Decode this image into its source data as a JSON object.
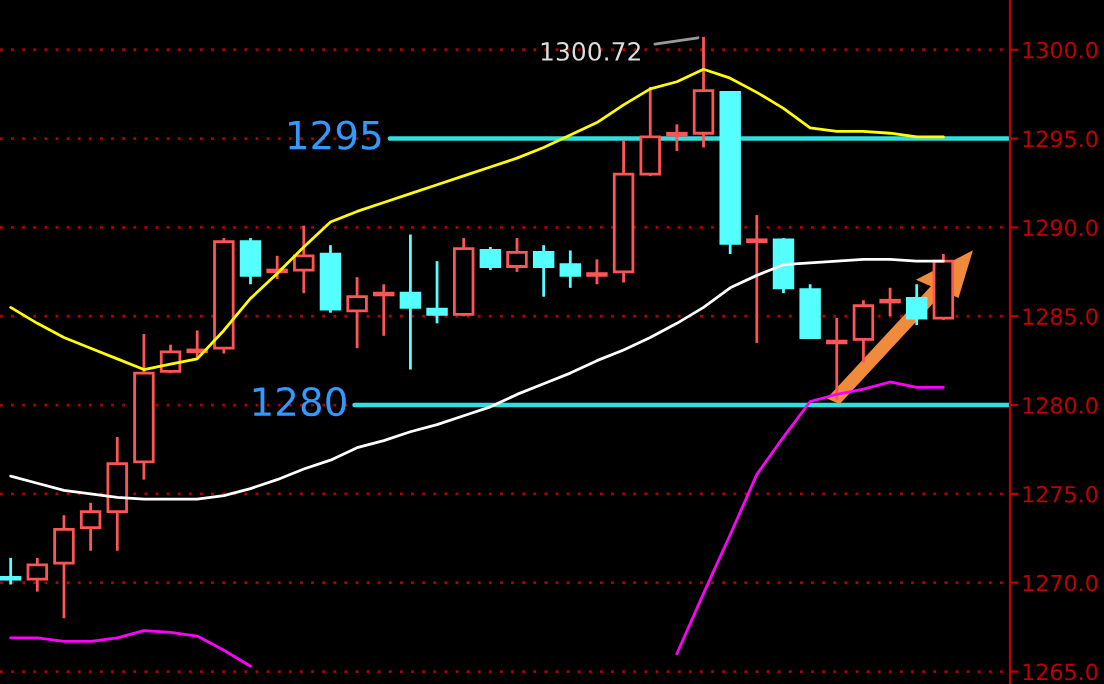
{
  "chart_data": {
    "type": "candlestick",
    "categories": [
      null,
      null,
      null,
      null,
      null,
      null,
      null,
      null,
      null,
      null,
      null,
      null,
      null,
      null,
      null,
      null,
      null,
      null,
      null,
      null,
      null,
      null,
      null,
      null,
      null,
      null,
      null,
      null,
      null,
      null,
      null,
      null,
      null,
      null,
      null,
      null
    ],
    "ohlc": [
      [
        1270.3,
        1271.4,
        1269.9,
        1270.2
      ],
      [
        1270.2,
        1271.4,
        1269.5,
        1271.0
      ],
      [
        1271.1,
        1273.8,
        1268.0,
        1273.0
      ],
      [
        1273.1,
        1274.5,
        1271.8,
        1274.0
      ],
      [
        1274.0,
        1278.2,
        1271.8,
        1276.7
      ],
      [
        1276.8,
        1284.0,
        1275.8,
        1281.8
      ],
      [
        1281.9,
        1283.4,
        1281.8,
        1283.0
      ],
      [
        1283.0,
        1284.2,
        1282.6,
        1283.1
      ],
      [
        1283.2,
        1289.4,
        1282.9,
        1289.2
      ],
      [
        1289.2,
        1289.4,
        1286.8,
        1287.3
      ],
      [
        1287.5,
        1288.4,
        1287.1,
        1287.6
      ],
      [
        1287.6,
        1290.1,
        1286.3,
        1288.4
      ],
      [
        1288.5,
        1289.0,
        1285.2,
        1285.4
      ],
      [
        1285.3,
        1287.2,
        1283.2,
        1286.1
      ],
      [
        1286.2,
        1286.8,
        1283.9,
        1286.3
      ],
      [
        1286.3,
        1289.6,
        1282.0,
        1285.5
      ],
      [
        1285.4,
        1288.1,
        1284.6,
        1285.1
      ],
      [
        1285.1,
        1289.4,
        1285.0,
        1288.8
      ],
      [
        1288.7,
        1288.9,
        1287.6,
        1287.8
      ],
      [
        1287.8,
        1289.4,
        1287.5,
        1288.6
      ],
      [
        1288.6,
        1289.0,
        1286.1,
        1287.8
      ],
      [
        1287.9,
        1288.7,
        1286.6,
        1287.3
      ],
      [
        1287.3,
        1288.2,
        1286.8,
        1287.4
      ],
      [
        1287.5,
        1294.9,
        1286.9,
        1293.0
      ],
      [
        1293.0,
        1297.9,
        1292.9,
        1295.1
      ],
      [
        1295.2,
        1295.8,
        1294.3,
        1295.3
      ],
      [
        1295.3,
        1300.72,
        1294.5,
        1297.7
      ],
      [
        1297.6,
        1297.6,
        1288.5,
        1289.1
      ],
      [
        1289.2,
        1290.7,
        1283.5,
        1289.3
      ],
      [
        1289.3,
        1289.4,
        1286.3,
        1286.6
      ],
      [
        1286.5,
        1286.8,
        1283.8,
        1283.8
      ],
      [
        1283.5,
        1284.9,
        1280.3,
        1283.6
      ],
      [
        1283.7,
        1285.9,
        1282.4,
        1285.6
      ],
      [
        1285.8,
        1286.6,
        1285.0,
        1285.9
      ],
      [
        1286.0,
        1286.8,
        1284.5,
        1284.9
      ],
      [
        1284.9,
        1288.5,
        1284.8,
        1288.1
      ]
    ],
    "colors": [
      "#55ffff",
      "#ff5555",
      "#ff5555",
      "#ff5555",
      "#ff5555",
      "#ff5555",
      "#ff5555",
      "#ff5555",
      "#ff5555",
      "#55ffff",
      "#ff5555",
      "#ff5555",
      "#55ffff",
      "#ff5555",
      "#ff5555",
      "#55ffff",
      "#55ffff",
      "#ff5555",
      "#55ffff",
      "#ff5555",
      "#55ffff",
      "#55ffff",
      "#ff5555",
      "#ff5555",
      "#ff5555",
      "#ff5555",
      "#ff5555",
      "#55ffff",
      "#ff5555",
      "#55ffff",
      "#55ffff",
      "#ff5555",
      "#ff5555",
      "#ff5555",
      "#55ffff",
      "#ff5555"
    ],
    "series": [
      {
        "type": "line",
        "color": "#ffff00",
        "values": [
          1285.5,
          1284.6,
          1283.8,
          1283.2,
          1282.6,
          1282.0,
          1282.3,
          1282.6,
          1284.2,
          1286.0,
          1287.4,
          1288.9,
          1290.3,
          1290.9,
          1291.4,
          1291.9,
          1292.4,
          1292.9,
          1293.4,
          1293.9,
          1294.5,
          1295.2,
          1295.9,
          1296.9,
          1297.8,
          1298.2,
          1298.9,
          1298.4,
          1297.6,
          1296.7,
          1295.6,
          1295.4,
          1295.4,
          1295.3,
          1295.1,
          1295.1
        ]
      },
      {
        "type": "line",
        "color": "#ffffff",
        "values": [
          1276.0,
          1275.6,
          1275.2,
          1275.0,
          1274.8,
          1274.7,
          1274.7,
          1274.7,
          1274.9,
          1275.3,
          1275.8,
          1276.4,
          1276.9,
          1277.6,
          1278.0,
          1278.5,
          1278.9,
          1279.4,
          1279.9,
          1280.6,
          1281.2,
          1281.8,
          1282.5,
          1283.1,
          1283.8,
          1284.6,
          1285.5,
          1286.6,
          1287.3,
          1287.9,
          1288.0,
          1288.1,
          1288.2,
          1288.2,
          1288.1,
          1288.1
        ]
      },
      {
        "type": "line",
        "color": "#ff00ff",
        "values": [
          1266.9,
          1266.9,
          1266.7,
          1266.7,
          1266.9,
          1267.3,
          1267.2,
          1267.0,
          1266.2,
          1265.3,
          null,
          null,
          null,
          null,
          null,
          null,
          null,
          null,
          null,
          null,
          null,
          null,
          null,
          null,
          null,
          1266.0,
          1269.4,
          1272.7,
          1276.1,
          1278.2,
          1280.2,
          1280.6,
          1280.9,
          1281.3,
          1281.0,
          1281.0
        ]
      }
    ],
    "ylim": [
      1264.3,
      1302.8
    ],
    "yticks": [
      {
        "value": 1265,
        "label": "1265.0"
      },
      {
        "value": 1270,
        "label": "1270.0"
      },
      {
        "value": 1275,
        "label": "1275.0"
      },
      {
        "value": 1280,
        "label": "1280.0"
      },
      {
        "value": 1285,
        "label": "1285.0"
      },
      {
        "value": 1290,
        "label": "1290.0"
      },
      {
        "value": 1295,
        "label": "1295.0"
      },
      {
        "value": 1300,
        "label": "1300.0"
      }
    ],
    "ref_lines": [
      {
        "axis": "y",
        "value": 1295,
        "label": "1295",
        "color": "#33dddd"
      },
      {
        "axis": "y",
        "value": 1280,
        "label": "1280",
        "color": "#33dddd"
      }
    ],
    "annotations": [
      "1300.72"
    ],
    "grid": "y",
    "legend": false,
    "tick_labels": "y"
  }
}
